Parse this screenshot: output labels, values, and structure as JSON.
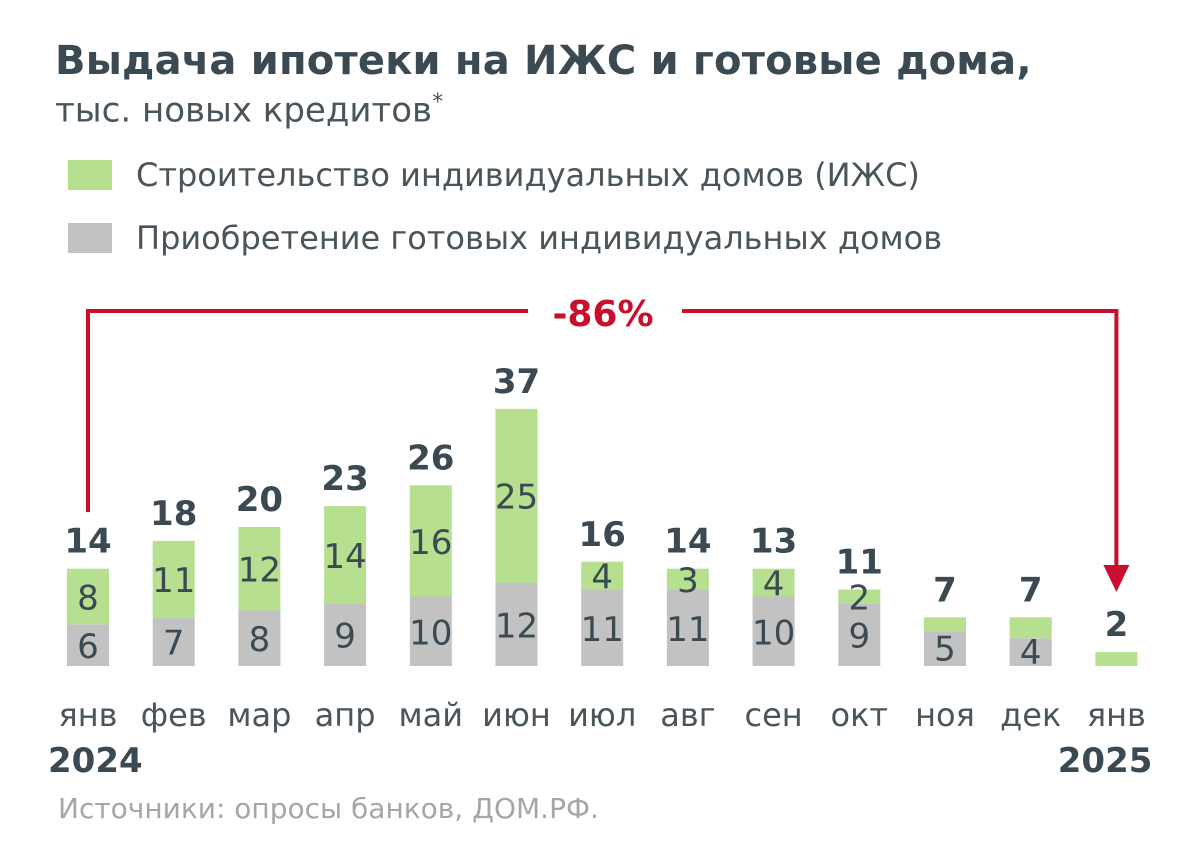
{
  "header": {
    "title": "Выдача ипотеки на ИЖС и готовые дома,",
    "subtitle": "тыс. новых кредитов",
    "subtitle_marker": "*"
  },
  "legend": [
    {
      "label": "Строительство индивидуальных домов (ИЖС)",
      "color": "#b6df90"
    },
    {
      "label": "Приобретение готовых индивидуальных домов",
      "color": "#c2c2c2"
    }
  ],
  "chart_data": {
    "type": "bar",
    "stacked": true,
    "categories": [
      "янв",
      "фев",
      "мар",
      "апр",
      "май",
      "июн",
      "июл",
      "авг",
      "сен",
      "окт",
      "ноя",
      "дек",
      "янв"
    ],
    "year_labels": {
      "start": "2024",
      "end": "2025"
    },
    "series": [
      {
        "name": "Приобретение готовых индивидуальных домов",
        "values": [
          6,
          7,
          8,
          9,
          10,
          12,
          11,
          11,
          10,
          9,
          5,
          4,
          0
        ],
        "labels": [
          "6",
          "7",
          "8",
          "9",
          "10",
          "12",
          "11",
          "11",
          "10",
          "9",
          "5",
          "4",
          ""
        ]
      },
      {
        "name": "Строительство индивидуальных домов (ИЖС)",
        "values": [
          8,
          11,
          12,
          14,
          16,
          25,
          4,
          3,
          4,
          2,
          2,
          3,
          2
        ],
        "labels": [
          "8",
          "11",
          "12",
          "14",
          "16",
          "25",
          "4",
          "3",
          "4",
          "2",
          "",
          "",
          ""
        ]
      }
    ],
    "totals": [
      "14",
      "18",
      "20",
      "23",
      "26",
      "37",
      "16",
      "14",
      "13",
      "11",
      "7",
      "7",
      "2"
    ],
    "annotation": {
      "text": "-86%",
      "from": "янв 2024",
      "to": "янв 2025",
      "color": "#c8102e"
    },
    "colors": {
      "green": "#b6df90",
      "gray": "#c2c2c2"
    }
  },
  "footer": {
    "source": "Источники: опросы банков, ДОМ.РФ."
  }
}
